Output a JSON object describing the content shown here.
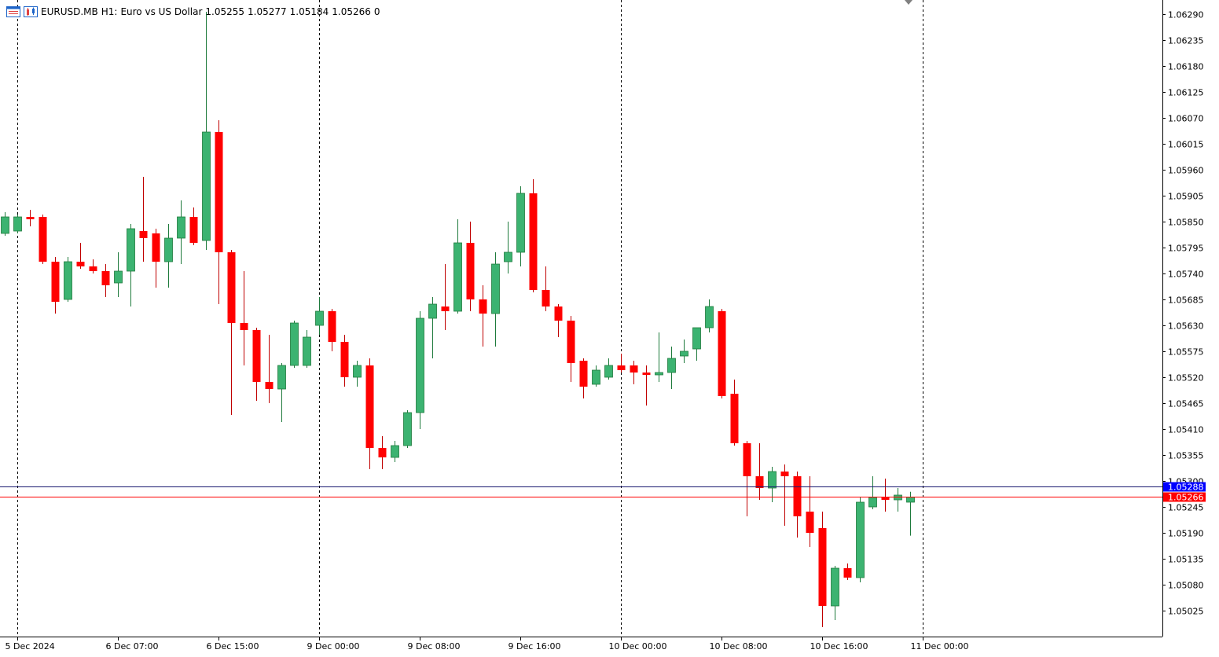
{
  "header": {
    "symbol": "EURUSD.MB",
    "timeframe": "H1:",
    "description": "Euro vs US Dollar",
    "open": "1.05255",
    "high": "1.05277",
    "low": "1.05184",
    "close": "1.05266",
    "volume": "0"
  },
  "price_labels": {
    "ask": "1.05288",
    "bid": "1.05266",
    "ask_color": "#0000ff",
    "bid_color": "#ff0000"
  },
  "colors": {
    "bull": "#3cb371",
    "bear": "#ff0000",
    "axis": "#808080"
  },
  "chart_data": {
    "type": "candlestick",
    "ylim": [
      1.0498,
      1.0632
    ],
    "y_ticks": [
      "1.06290",
      "1.06235",
      "1.06180",
      "1.06125",
      "1.06070",
      "1.06015",
      "1.05960",
      "1.05905",
      "1.05850",
      "1.05795",
      "1.05740",
      "1.05685",
      "1.05630",
      "1.05575",
      "1.05520",
      "1.05465",
      "1.05410",
      "1.05355",
      "1.05300",
      "1.05245",
      "1.05190",
      "1.05135",
      "1.05080",
      "1.05025"
    ],
    "x_ticks": [
      {
        "label": "5 Dec 2024",
        "index": 1
      },
      {
        "label": "6 Dec 07:00",
        "index": 9
      },
      {
        "label": "6 Dec 15:00",
        "index": 17
      },
      {
        "label": "9 Dec 00:00",
        "index": 25
      },
      {
        "label": "9 Dec 08:00",
        "index": 33
      },
      {
        "label": "9 Dec 16:00",
        "index": 41
      },
      {
        "label": "10 Dec 00:00",
        "index": 49
      },
      {
        "label": "10 Dec 08:00",
        "index": 57
      },
      {
        "label": "10 Dec 16:00",
        "index": 65
      },
      {
        "label": "11 Dec 00:00",
        "index": 73
      }
    ],
    "separator_indices": [
      1,
      25,
      49,
      73
    ],
    "ask": 1.05288,
    "bid": 1.05266,
    "candles": [
      {
        "o": 1.05825,
        "h": 1.0587,
        "l": 1.0582,
        "c": 1.0586
      },
      {
        "o": 1.0583,
        "h": 1.05865,
        "l": 1.05825,
        "c": 1.0586
      },
      {
        "o": 1.0586,
        "h": 1.05875,
        "l": 1.0584,
        "c": 1.05855
      },
      {
        "o": 1.0586,
        "h": 1.05865,
        "l": 1.0576,
        "c": 1.05765
      },
      {
        "o": 1.05765,
        "h": 1.05775,
        "l": 1.05655,
        "c": 1.0568
      },
      {
        "o": 1.05685,
        "h": 1.05775,
        "l": 1.0568,
        "c": 1.05765
      },
      {
        "o": 1.05765,
        "h": 1.05805,
        "l": 1.0575,
        "c": 1.05755
      },
      {
        "o": 1.05755,
        "h": 1.0577,
        "l": 1.0574,
        "c": 1.05745
      },
      {
        "o": 1.05745,
        "h": 1.0576,
        "l": 1.0569,
        "c": 1.05715
      },
      {
        "o": 1.0572,
        "h": 1.05785,
        "l": 1.0569,
        "c": 1.05745
      },
      {
        "o": 1.05745,
        "h": 1.05845,
        "l": 1.0567,
        "c": 1.05835
      },
      {
        "o": 1.0583,
        "h": 1.05945,
        "l": 1.05765,
        "c": 1.05815
      },
      {
        "o": 1.05825,
        "h": 1.05835,
        "l": 1.0571,
        "c": 1.05765
      },
      {
        "o": 1.05765,
        "h": 1.05845,
        "l": 1.0571,
        "c": 1.05815
      },
      {
        "o": 1.05815,
        "h": 1.05895,
        "l": 1.0576,
        "c": 1.0586
      },
      {
        "o": 1.0586,
        "h": 1.0588,
        "l": 1.058,
        "c": 1.05805
      },
      {
        "o": 1.0581,
        "h": 1.06295,
        "l": 1.0579,
        "c": 1.0604
      },
      {
        "o": 1.0604,
        "h": 1.06065,
        "l": 1.05675,
        "c": 1.05785
      },
      {
        "o": 1.05785,
        "h": 1.0579,
        "l": 1.0544,
        "c": 1.05635
      },
      {
        "o": 1.05635,
        "h": 1.05745,
        "l": 1.05545,
        "c": 1.0562
      },
      {
        "o": 1.0562,
        "h": 1.05625,
        "l": 1.0547,
        "c": 1.0551
      },
      {
        "o": 1.0551,
        "h": 1.0561,
        "l": 1.05465,
        "c": 1.05495
      },
      {
        "o": 1.05495,
        "h": 1.0555,
        "l": 1.05425,
        "c": 1.05545
      },
      {
        "o": 1.05545,
        "h": 1.0564,
        "l": 1.0554,
        "c": 1.05635
      },
      {
        "o": 1.05545,
        "h": 1.0562,
        "l": 1.0554,
        "c": 1.05605
      },
      {
        "o": 1.0563,
        "h": 1.0569,
        "l": 1.0561,
        "c": 1.0566
      },
      {
        "o": 1.0566,
        "h": 1.05665,
        "l": 1.05575,
        "c": 1.05595
      },
      {
        "o": 1.05595,
        "h": 1.0561,
        "l": 1.055,
        "c": 1.0552
      },
      {
        "o": 1.0552,
        "h": 1.05555,
        "l": 1.055,
        "c": 1.05545
      },
      {
        "o": 1.05545,
        "h": 1.0556,
        "l": 1.05325,
        "c": 1.0537
      },
      {
        "o": 1.0537,
        "h": 1.05395,
        "l": 1.05325,
        "c": 1.0535
      },
      {
        "o": 1.0535,
        "h": 1.05385,
        "l": 1.0534,
        "c": 1.05375
      },
      {
        "o": 1.05375,
        "h": 1.0545,
        "l": 1.0537,
        "c": 1.05445
      },
      {
        "o": 1.05445,
        "h": 1.0566,
        "l": 1.0541,
        "c": 1.05645
      },
      {
        "o": 1.05645,
        "h": 1.0569,
        "l": 1.0556,
        "c": 1.05675
      },
      {
        "o": 1.0567,
        "h": 1.0576,
        "l": 1.0562,
        "c": 1.0566
      },
      {
        "o": 1.0566,
        "h": 1.05855,
        "l": 1.05655,
        "c": 1.05805
      },
      {
        "o": 1.05805,
        "h": 1.0585,
        "l": 1.0566,
        "c": 1.05685
      },
      {
        "o": 1.05685,
        "h": 1.05715,
        "l": 1.05585,
        "c": 1.05655
      },
      {
        "o": 1.05655,
        "h": 1.05785,
        "l": 1.05585,
        "c": 1.0576
      },
      {
        "o": 1.05765,
        "h": 1.0585,
        "l": 1.0574,
        "c": 1.05785
      },
      {
        "o": 1.05785,
        "h": 1.05925,
        "l": 1.05755,
        "c": 1.0591
      },
      {
        "o": 1.0591,
        "h": 1.0594,
        "l": 1.057,
        "c": 1.05705
      },
      {
        "o": 1.05705,
        "h": 1.05755,
        "l": 1.0566,
        "c": 1.0567
      },
      {
        "o": 1.0567,
        "h": 1.05675,
        "l": 1.05605,
        "c": 1.0564
      },
      {
        "o": 1.0564,
        "h": 1.0565,
        "l": 1.0551,
        "c": 1.0555
      },
      {
        "o": 1.05555,
        "h": 1.0556,
        "l": 1.05475,
        "c": 1.055
      },
      {
        "o": 1.05505,
        "h": 1.05545,
        "l": 1.055,
        "c": 1.05535
      },
      {
        "o": 1.0552,
        "h": 1.0556,
        "l": 1.05515,
        "c": 1.05545
      },
      {
        "o": 1.05545,
        "h": 1.0557,
        "l": 1.0553,
        "c": 1.05535
      },
      {
        "o": 1.05545,
        "h": 1.05555,
        "l": 1.05505,
        "c": 1.0553
      },
      {
        "o": 1.0553,
        "h": 1.05545,
        "l": 1.0546,
        "c": 1.05525
      },
      {
        "o": 1.05525,
        "h": 1.05615,
        "l": 1.0551,
        "c": 1.0553
      },
      {
        "o": 1.0553,
        "h": 1.05585,
        "l": 1.05495,
        "c": 1.0556
      },
      {
        "o": 1.05565,
        "h": 1.056,
        "l": 1.0555,
        "c": 1.05575
      },
      {
        "o": 1.0558,
        "h": 1.05625,
        "l": 1.05555,
        "c": 1.05625
      },
      {
        "o": 1.05625,
        "h": 1.05685,
        "l": 1.05615,
        "c": 1.0567
      },
      {
        "o": 1.0566,
        "h": 1.05665,
        "l": 1.05475,
        "c": 1.0548
      },
      {
        "o": 1.05485,
        "h": 1.05515,
        "l": 1.05375,
        "c": 1.0538
      },
      {
        "o": 1.0538,
        "h": 1.05385,
        "l": 1.05225,
        "c": 1.0531
      },
      {
        "o": 1.0531,
        "h": 1.0538,
        "l": 1.0526,
        "c": 1.05285
      },
      {
        "o": 1.05285,
        "h": 1.0533,
        "l": 1.05255,
        "c": 1.0532
      },
      {
        "o": 1.0532,
        "h": 1.05335,
        "l": 1.05205,
        "c": 1.0531
      },
      {
        "o": 1.0531,
        "h": 1.0532,
        "l": 1.0518,
        "c": 1.05225
      },
      {
        "o": 1.05235,
        "h": 1.0531,
        "l": 1.0516,
        "c": 1.0519
      },
      {
        "o": 1.052,
        "h": 1.05235,
        "l": 1.0499,
        "c": 1.05035
      },
      {
        "o": 1.05035,
        "h": 1.0512,
        "l": 1.05005,
        "c": 1.05115
      },
      {
        "o": 1.05115,
        "h": 1.05125,
        "l": 1.0509,
        "c": 1.05095
      },
      {
        "o": 1.05095,
        "h": 1.05265,
        "l": 1.05085,
        "c": 1.05255
      },
      {
        "o": 1.05245,
        "h": 1.0531,
        "l": 1.0524,
        "c": 1.05265
      },
      {
        "o": 1.05265,
        "h": 1.05305,
        "l": 1.05235,
        "c": 1.0526
      },
      {
        "o": 1.0526,
        "h": 1.05285,
        "l": 1.05235,
        "c": 1.0527
      },
      {
        "o": 1.05255,
        "h": 1.05277,
        "l": 1.05184,
        "c": 1.05266
      }
    ]
  }
}
